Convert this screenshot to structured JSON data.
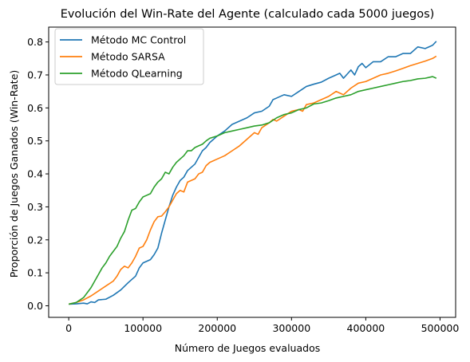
{
  "chart_data": {
    "type": "line",
    "title": "Evolución del Win-Rate del Agente (calculado cada 5000 juegos)",
    "xlabel": "Número de Juegos evaluados",
    "ylabel": "Proporción de Juegos Ganados (Win-Rate)",
    "xlim": [
      -27000,
      521000
    ],
    "ylim": [
      -0.035,
      0.845
    ],
    "xticks": [
      0,
      100000,
      200000,
      300000,
      400000,
      500000
    ],
    "xtick_labels": [
      "0",
      "100000",
      "200000",
      "300000",
      "400000",
      "500000"
    ],
    "yticks": [
      0.0,
      0.1,
      0.2,
      0.3,
      0.4,
      0.5,
      0.6,
      0.7,
      0.8
    ],
    "ytick_labels": [
      "0.0",
      "0.1",
      "0.2",
      "0.3",
      "0.4",
      "0.5",
      "0.6",
      "0.7",
      "0.8"
    ],
    "grid": false,
    "legend_position": "top-left",
    "series": [
      {
        "name": "Método MC Control",
        "color": "#1f77b4",
        "points": [
          [
            0,
            0.005
          ],
          [
            10000,
            0.006
          ],
          [
            20000,
            0.008
          ],
          [
            25000,
            0.006
          ],
          [
            30000,
            0.012
          ],
          [
            35000,
            0.01
          ],
          [
            40000,
            0.018
          ],
          [
            50000,
            0.02
          ],
          [
            60000,
            0.032
          ],
          [
            70000,
            0.048
          ],
          [
            80000,
            0.07
          ],
          [
            90000,
            0.09
          ],
          [
            95000,
            0.115
          ],
          [
            100000,
            0.13
          ],
          [
            110000,
            0.14
          ],
          [
            115000,
            0.155
          ],
          [
            120000,
            0.175
          ],
          [
            125000,
            0.22
          ],
          [
            130000,
            0.26
          ],
          [
            135000,
            0.3
          ],
          [
            140000,
            0.335
          ],
          [
            145000,
            0.36
          ],
          [
            150000,
            0.38
          ],
          [
            155000,
            0.39
          ],
          [
            160000,
            0.41
          ],
          [
            165000,
            0.42
          ],
          [
            170000,
            0.43
          ],
          [
            175000,
            0.45
          ],
          [
            180000,
            0.47
          ],
          [
            185000,
            0.48
          ],
          [
            190000,
            0.495
          ],
          [
            195000,
            0.505
          ],
          [
            200000,
            0.515
          ],
          [
            210000,
            0.53
          ],
          [
            220000,
            0.55
          ],
          [
            230000,
            0.56
          ],
          [
            240000,
            0.57
          ],
          [
            250000,
            0.585
          ],
          [
            260000,
            0.59
          ],
          [
            270000,
            0.605
          ],
          [
            275000,
            0.625
          ],
          [
            280000,
            0.63
          ],
          [
            290000,
            0.64
          ],
          [
            300000,
            0.635
          ],
          [
            310000,
            0.65
          ],
          [
            320000,
            0.665
          ],
          [
            330000,
            0.672
          ],
          [
            340000,
            0.678
          ],
          [
            350000,
            0.69
          ],
          [
            360000,
            0.7
          ],
          [
            365000,
            0.705
          ],
          [
            370000,
            0.69
          ],
          [
            380000,
            0.715
          ],
          [
            385000,
            0.7
          ],
          [
            390000,
            0.725
          ],
          [
            395000,
            0.735
          ],
          [
            400000,
            0.722
          ],
          [
            410000,
            0.74
          ],
          [
            420000,
            0.74
          ],
          [
            430000,
            0.755
          ],
          [
            440000,
            0.755
          ],
          [
            450000,
            0.765
          ],
          [
            460000,
            0.765
          ],
          [
            470000,
            0.785
          ],
          [
            480000,
            0.78
          ],
          [
            490000,
            0.79
          ],
          [
            495000,
            0.802
          ]
        ]
      },
      {
        "name": "Método SARSA",
        "color": "#ff7f0e",
        "points": [
          [
            0,
            0.005
          ],
          [
            10000,
            0.01
          ],
          [
            20000,
            0.018
          ],
          [
            30000,
            0.03
          ],
          [
            40000,
            0.045
          ],
          [
            50000,
            0.06
          ],
          [
            60000,
            0.075
          ],
          [
            65000,
            0.09
          ],
          [
            70000,
            0.11
          ],
          [
            75000,
            0.12
          ],
          [
            80000,
            0.115
          ],
          [
            85000,
            0.13
          ],
          [
            90000,
            0.15
          ],
          [
            95000,
            0.175
          ],
          [
            100000,
            0.18
          ],
          [
            105000,
            0.2
          ],
          [
            110000,
            0.23
          ],
          [
            115000,
            0.255
          ],
          [
            120000,
            0.27
          ],
          [
            125000,
            0.272
          ],
          [
            130000,
            0.285
          ],
          [
            135000,
            0.3
          ],
          [
            140000,
            0.32
          ],
          [
            145000,
            0.34
          ],
          [
            150000,
            0.35
          ],
          [
            155000,
            0.345
          ],
          [
            160000,
            0.375
          ],
          [
            170000,
            0.385
          ],
          [
            175000,
            0.4
          ],
          [
            180000,
            0.405
          ],
          [
            185000,
            0.425
          ],
          [
            190000,
            0.435
          ],
          [
            200000,
            0.445
          ],
          [
            210000,
            0.455
          ],
          [
            220000,
            0.47
          ],
          [
            230000,
            0.485
          ],
          [
            240000,
            0.505
          ],
          [
            250000,
            0.525
          ],
          [
            255000,
            0.52
          ],
          [
            260000,
            0.54
          ],
          [
            270000,
            0.555
          ],
          [
            275000,
            0.565
          ],
          [
            280000,
            0.56
          ],
          [
            290000,
            0.575
          ],
          [
            300000,
            0.59
          ],
          [
            310000,
            0.595
          ],
          [
            315000,
            0.59
          ],
          [
            320000,
            0.61
          ],
          [
            330000,
            0.615
          ],
          [
            340000,
            0.625
          ],
          [
            350000,
            0.635
          ],
          [
            360000,
            0.65
          ],
          [
            365000,
            0.645
          ],
          [
            370000,
            0.64
          ],
          [
            380000,
            0.66
          ],
          [
            390000,
            0.675
          ],
          [
            400000,
            0.68
          ],
          [
            410000,
            0.69
          ],
          [
            420000,
            0.7
          ],
          [
            430000,
            0.705
          ],
          [
            440000,
            0.712
          ],
          [
            450000,
            0.72
          ],
          [
            460000,
            0.728
          ],
          [
            470000,
            0.735
          ],
          [
            480000,
            0.742
          ],
          [
            490000,
            0.75
          ],
          [
            495000,
            0.757
          ]
        ]
      },
      {
        "name": "Método QLearning",
        "color": "#2ca02c",
        "points": [
          [
            0,
            0.005
          ],
          [
            10000,
            0.01
          ],
          [
            20000,
            0.025
          ],
          [
            25000,
            0.04
          ],
          [
            30000,
            0.055
          ],
          [
            35000,
            0.075
          ],
          [
            40000,
            0.095
          ],
          [
            45000,
            0.115
          ],
          [
            50000,
            0.13
          ],
          [
            55000,
            0.15
          ],
          [
            60000,
            0.165
          ],
          [
            65000,
            0.18
          ],
          [
            70000,
            0.205
          ],
          [
            75000,
            0.225
          ],
          [
            80000,
            0.26
          ],
          [
            85000,
            0.29
          ],
          [
            90000,
            0.295
          ],
          [
            95000,
            0.315
          ],
          [
            100000,
            0.33
          ],
          [
            105000,
            0.335
          ],
          [
            110000,
            0.34
          ],
          [
            115000,
            0.36
          ],
          [
            120000,
            0.375
          ],
          [
            125000,
            0.385
          ],
          [
            130000,
            0.405
          ],
          [
            135000,
            0.4
          ],
          [
            140000,
            0.42
          ],
          [
            145000,
            0.435
          ],
          [
            150000,
            0.445
          ],
          [
            155000,
            0.455
          ],
          [
            160000,
            0.47
          ],
          [
            165000,
            0.47
          ],
          [
            170000,
            0.48
          ],
          [
            175000,
            0.485
          ],
          [
            180000,
            0.49
          ],
          [
            185000,
            0.5
          ],
          [
            190000,
            0.508
          ],
          [
            200000,
            0.515
          ],
          [
            210000,
            0.525
          ],
          [
            220000,
            0.53
          ],
          [
            230000,
            0.535
          ],
          [
            240000,
            0.54
          ],
          [
            250000,
            0.545
          ],
          [
            260000,
            0.548
          ],
          [
            270000,
            0.555
          ],
          [
            280000,
            0.57
          ],
          [
            290000,
            0.58
          ],
          [
            300000,
            0.585
          ],
          [
            310000,
            0.595
          ],
          [
            320000,
            0.6
          ],
          [
            330000,
            0.612
          ],
          [
            340000,
            0.615
          ],
          [
            350000,
            0.622
          ],
          [
            360000,
            0.63
          ],
          [
            370000,
            0.635
          ],
          [
            380000,
            0.64
          ],
          [
            390000,
            0.65
          ],
          [
            400000,
            0.655
          ],
          [
            410000,
            0.66
          ],
          [
            420000,
            0.665
          ],
          [
            430000,
            0.67
          ],
          [
            440000,
            0.675
          ],
          [
            450000,
            0.68
          ],
          [
            460000,
            0.683
          ],
          [
            470000,
            0.688
          ],
          [
            480000,
            0.69
          ],
          [
            490000,
            0.695
          ],
          [
            495000,
            0.69
          ]
        ]
      }
    ]
  }
}
